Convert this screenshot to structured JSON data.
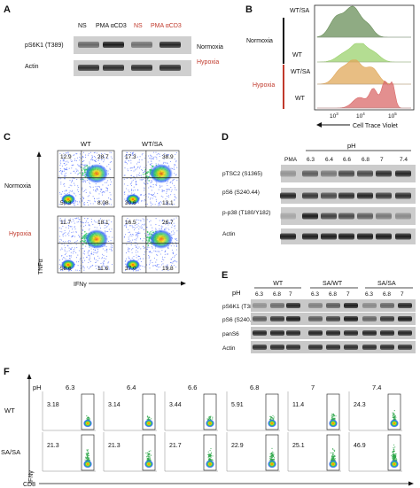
{
  "panels": {
    "A": {
      "letter": "A",
      "lanes": [
        "NS",
        "PMA αCD3",
        "NS",
        "PMA αCD3"
      ],
      "lane_colors": [
        "#111111",
        "#111111",
        "#c0392b",
        "#c0392b"
      ],
      "rows": [
        "pS6K1 (T389)",
        "Actin"
      ],
      "conditions": [
        {
          "label": "Normoxia",
          "color": "#111111"
        },
        {
          "label": "Hypoxia",
          "color": "#c0392b"
        }
      ]
    },
    "B": {
      "letter": "B",
      "groups": [
        {
          "label": "Normoxia",
          "color": "#111111",
          "tracks": [
            "WT/SA",
            "WT"
          ]
        },
        {
          "label": "Hypoxia",
          "color": "#c0392b",
          "tracks": [
            "WT/SA",
            "WT"
          ]
        }
      ],
      "x_ticks": [
        "10",
        "10",
        "10",
        "10"
      ],
      "x_tick_exps": [
        "3",
        "4",
        "5",
        ""
      ],
      "xlabel": "Cell Trace Violet",
      "fill_colors": [
        "#6a8f5a",
        "#9bd16d",
        "#e0a85a",
        "#d96a6a"
      ]
    },
    "C": {
      "letter": "C",
      "cols": [
        "WT",
        "WT/SA"
      ],
      "rows": [
        {
          "label": "Normoxia",
          "color": "#111111"
        },
        {
          "label": "Hypoxia",
          "color": "#c0392b"
        }
      ],
      "ylabel": "TNFα",
      "xlabel": "IFNγ",
      "quadrants": [
        {
          "tl": "12.9",
          "tr": "28.7",
          "bl": "50.3",
          "br": "8.08"
        },
        {
          "tl": "17.3",
          "tr": "38.9",
          "bl": "30.6",
          "br": "13.1"
        },
        {
          "tl": "11.7",
          "tr": "18.1",
          "bl": "58.6",
          "br": "11.6"
        },
        {
          "tl": "16.5",
          "tr": "26.7",
          "bl": "37.0",
          "br": "19.8"
        }
      ]
    },
    "D": {
      "letter": "D",
      "ph_title": "pH",
      "lanes": [
        "PMA",
        "6.3",
        "6.4",
        "6.6",
        "6.8",
        "7",
        "7.4"
      ],
      "rows": [
        "pTSC2 (S1365)",
        "pS6 (S240.44)",
        "p-p38 (T180/Y182)",
        "Actin"
      ]
    },
    "E": {
      "letter": "E",
      "ph_label": "pH",
      "groups": [
        "WT",
        "SA/WT",
        "SA/SA"
      ],
      "lanes": [
        "6.3",
        "6.8",
        "7",
        "6.3",
        "6.8",
        "7",
        "6.3",
        "6.8",
        "7"
      ],
      "rows": [
        "pS6K1 (T389)",
        "pS6 (S240.44)",
        "panS6",
        "Actin"
      ]
    },
    "F": {
      "letter": "F",
      "ph_label": "pH",
      "cols": [
        "6.3",
        "6.4",
        "6.6",
        "6.8",
        "7",
        "7.4"
      ],
      "rows": [
        "WT",
        "SA/SA"
      ],
      "values": [
        [
          "3.18",
          "3.14",
          "3.44",
          "5.91",
          "11.4",
          "24.3"
        ],
        [
          "21.3",
          "21.3",
          "21.7",
          "22.9",
          "25.1",
          "46.9"
        ]
      ],
      "ylabel": "IFNγ",
      "xlabel": "CD8"
    }
  }
}
